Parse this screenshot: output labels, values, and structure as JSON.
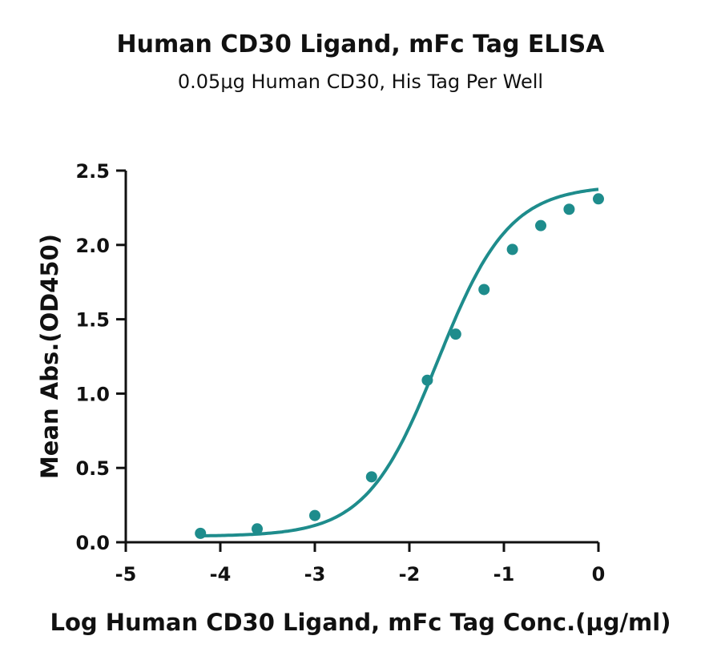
{
  "chart_data": {
    "type": "scatter",
    "title": "Human CD30 Ligand, mFc Tag ELISA",
    "subtitle": "0.05μg Human CD30, His Tag Per Well",
    "xlabel": "Log Human CD30 Ligand, mFc Tag Conc.(μg/ml)",
    "ylabel": "Mean Abs.(OD450)",
    "xlim": [
      -5,
      0
    ],
    "ylim": [
      0,
      2.5
    ],
    "x_ticks": [
      "-5",
      "-4",
      "-3",
      "-2",
      "-1",
      "0"
    ],
    "y_ticks": [
      "0.0",
      "0.5",
      "1.0",
      "1.5",
      "2.0",
      "2.5"
    ],
    "grid": false,
    "series": [
      {
        "x": [
          -4.21,
          -3.61,
          -3.0,
          -2.4,
          -1.81,
          -1.51,
          -1.21,
          -0.91,
          -0.61,
          -0.31,
          0.0
        ],
        "y": [
          0.06,
          0.09,
          0.18,
          0.44,
          1.09,
          1.4,
          1.7,
          1.97,
          2.13,
          2.24,
          2.31
        ],
        "fit": "4PL",
        "color": "#1e8c8c"
      }
    ]
  }
}
